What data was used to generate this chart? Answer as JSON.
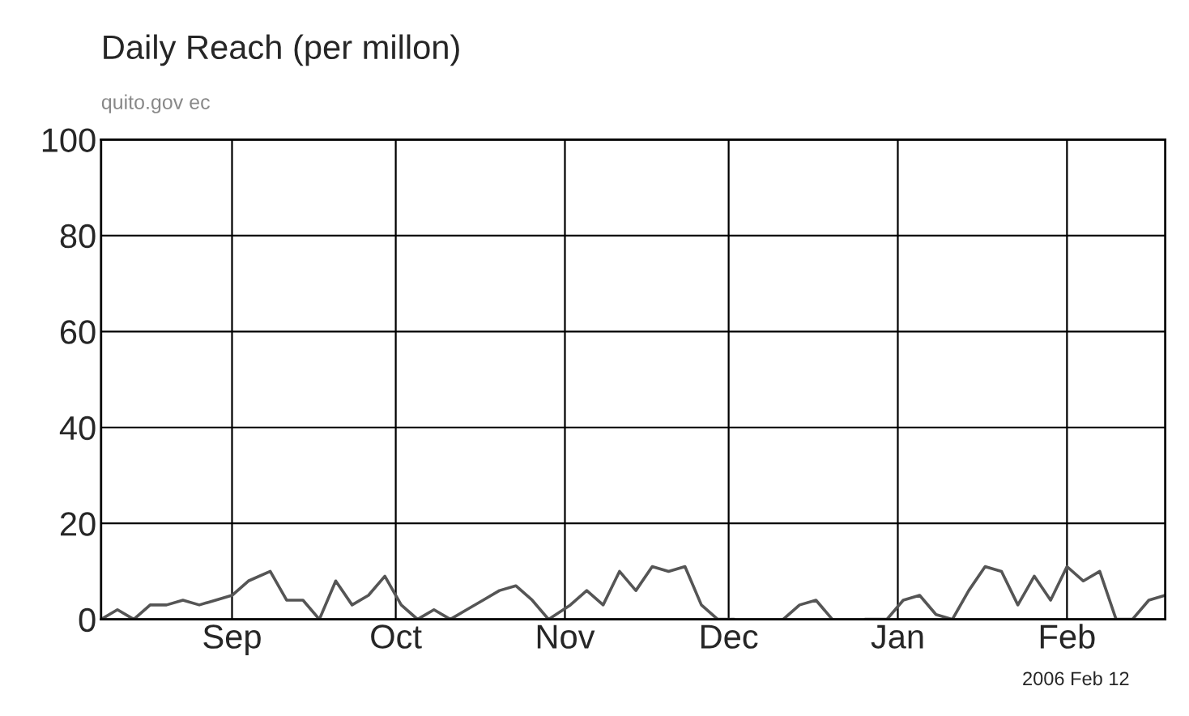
{
  "chart_data": {
    "type": "line",
    "title": "Daily Reach (per millon)",
    "subtitle": "quito.gov ec",
    "annotations": [
      "2006 Feb 12"
    ],
    "x": [
      "2005-08-08",
      "2005-08-11",
      "2005-08-14",
      "2005-08-17",
      "2005-08-20",
      "2005-08-23",
      "2005-08-26",
      "2005-08-29",
      "2005-09-01",
      "2005-09-04",
      "2005-09-08",
      "2005-09-11",
      "2005-09-14",
      "2005-09-17",
      "2005-09-20",
      "2005-09-23",
      "2005-09-26",
      "2005-09-29",
      "2005-10-02",
      "2005-10-05",
      "2005-10-08",
      "2005-10-11",
      "2005-10-14",
      "2005-10-17",
      "2005-10-20",
      "2005-10-23",
      "2005-10-26",
      "2005-10-29",
      "2005-11-02",
      "2005-11-05",
      "2005-11-08",
      "2005-11-11",
      "2005-11-14",
      "2005-11-17",
      "2005-11-20",
      "2005-11-23",
      "2005-11-26",
      "2005-11-29",
      "2005-12-02",
      "2005-12-05",
      "2005-12-08",
      "2005-12-11",
      "2005-12-14",
      "2005-12-17",
      "2005-12-20",
      "2005-12-23",
      "2005-12-26",
      "2005-12-30",
      "2006-01-02",
      "2006-01-05",
      "2006-01-08",
      "2006-01-11",
      "2006-01-14",
      "2006-01-17",
      "2006-01-20",
      "2006-01-23",
      "2006-01-26",
      "2006-01-29",
      "2006-02-01",
      "2006-02-04",
      "2006-02-07",
      "2006-02-10",
      "2006-02-13",
      "2006-02-16",
      "2006-02-19"
    ],
    "series": [
      {
        "color": "#555555",
        "values": [
          0,
          2,
          0,
          3,
          3,
          4,
          3,
          4,
          5,
          8,
          10,
          4,
          4,
          0,
          8,
          3,
          5,
          9,
          3,
          0,
          2,
          0,
          2,
          4,
          6,
          7,
          4,
          0,
          3,
          6,
          3,
          10,
          6,
          11,
          10,
          11,
          3,
          0,
          0,
          null,
          null,
          0,
          3,
          4,
          0,
          null,
          0,
          0,
          4,
          5,
          1,
          0,
          6,
          11,
          10,
          3,
          9,
          4,
          11,
          8,
          10,
          0,
          0,
          4,
          5
        ]
      }
    ],
    "xlim": [
      "2005-08-08",
      "2006-02-19"
    ],
    "xticks": [
      {
        "value": "2005-09-01",
        "label": "Sep"
      },
      {
        "value": "2005-10-01",
        "label": "Oct"
      },
      {
        "value": "2005-11-01",
        "label": "Nov"
      },
      {
        "value": "2005-12-01",
        "label": "Dec"
      },
      {
        "value": "2006-01-01",
        "label": "Jan"
      },
      {
        "value": "2006-02-01",
        "label": "Feb"
      }
    ],
    "ylim": [
      0,
      100
    ],
    "yticks": [
      0,
      20,
      40,
      60,
      80,
      100
    ],
    "grid": true,
    "legend": false,
    "marker": "none",
    "line_style": "solid"
  }
}
